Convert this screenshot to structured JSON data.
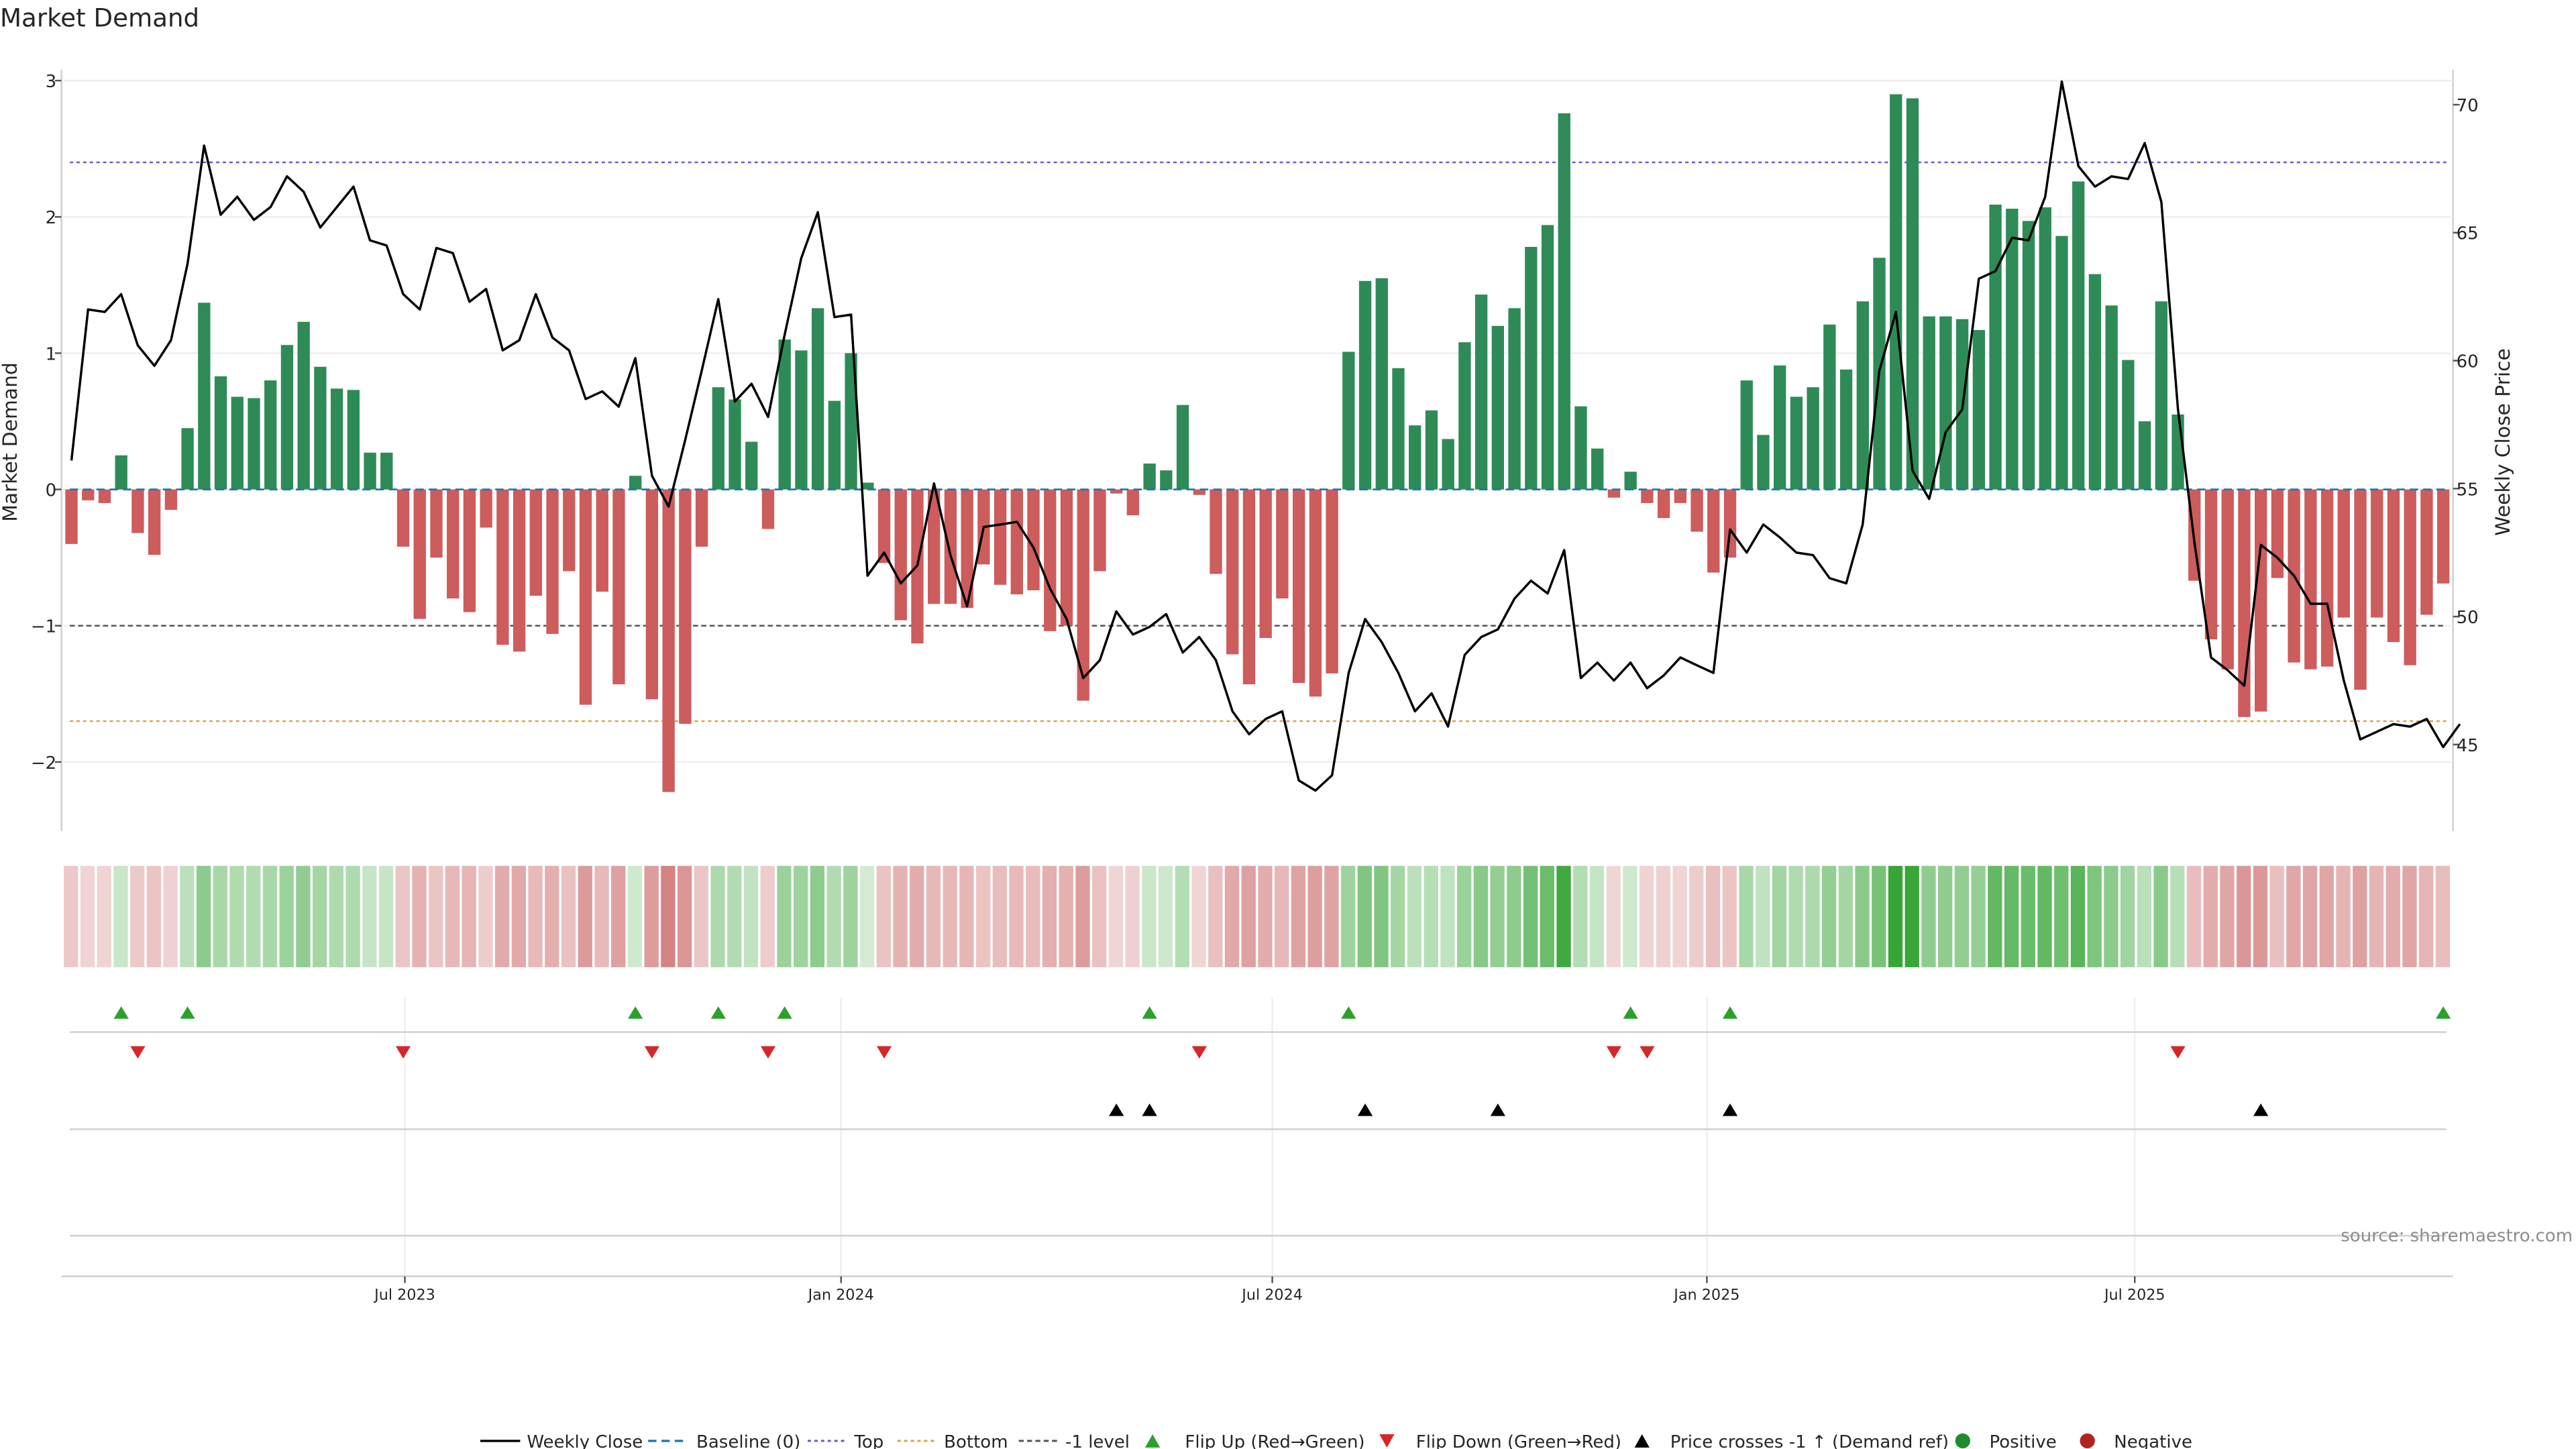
{
  "chart_data": {
    "type": "bar+line",
    "title": "Market Demand",
    "ylabel_left": "Market Demand",
    "ylabel_right": "Weekly Close Price",
    "ylim_left": [
      -2.5,
      3.1
    ],
    "ylim_right": [
      42,
      72
    ],
    "yticks_left": [
      -2,
      -1,
      0,
      1,
      2,
      3
    ],
    "ytick_labels_left": [
      "−2",
      "−1",
      "0",
      "1",
      "2",
      "3"
    ],
    "yticks_right": [
      45,
      50,
      55,
      60,
      65,
      70
    ],
    "ytick_labels_right": [
      "45",
      "50",
      "55",
      "60",
      "65",
      "70"
    ],
    "x_tick_weeks": [
      20.1,
      46.4,
      72.4,
      98.6,
      124.4
    ],
    "x_tick_labels": [
      "Jul 2023",
      "Jan 2024",
      "Jul 2024",
      "Jan 2025",
      "Jul 2025"
    ],
    "reference_lines": {
      "top": 2.4,
      "bottom": -1.7,
      "minus_one": -1.0,
      "baseline": 0
    },
    "demand": [
      -0.4,
      -0.08,
      -0.1,
      0.25,
      -0.32,
      -0.48,
      -0.15,
      0.45,
      1.37,
      0.83,
      0.68,
      0.67,
      0.8,
      1.06,
      1.23,
      0.9,
      0.74,
      0.73,
      0.27,
      0.27,
      -0.42,
      -0.95,
      -0.5,
      -0.8,
      -0.9,
      -0.28,
      -1.14,
      -1.19,
      -0.78,
      -1.06,
      -0.6,
      -1.58,
      -0.75,
      -1.43,
      0.1,
      -1.54,
      -2.22,
      -1.72,
      -0.42,
      0.75,
      0.66,
      0.35,
      -0.29,
      1.1,
      1.02,
      1.33,
      0.65,
      1.0,
      0.05,
      -0.54,
      -0.96,
      -1.13,
      -0.84,
      -0.84,
      -0.87,
      -0.55,
      -0.7,
      -0.77,
      -0.74,
      -1.04,
      -1.0,
      -1.55,
      -0.6,
      -0.03,
      -0.19,
      0.19,
      0.14,
      0.62,
      -0.04,
      -0.62,
      -1.21,
      -1.43,
      -1.09,
      -0.8,
      -1.42,
      -1.52,
      -1.35,
      1.01,
      1.53,
      1.55,
      0.89,
      0.47,
      0.58,
      0.37,
      1.08,
      1.43,
      1.2,
      1.33,
      1.78,
      1.94,
      2.76,
      0.61,
      0.3,
      -0.06,
      0.13,
      -0.1,
      -0.21,
      -0.1,
      -0.31,
      -0.61,
      -0.5,
      0.8,
      0.4,
      0.91,
      0.68,
      0.75,
      1.21,
      0.88,
      1.38,
      1.7,
      2.9,
      2.87,
      1.27,
      1.27,
      1.25,
      1.17,
      2.09,
      2.06,
      1.97,
      2.07,
      1.86,
      2.26,
      1.58,
      1.35,
      0.95,
      0.5,
      1.38,
      0.55,
      -0.67,
      -1.1,
      -1.32,
      -1.67,
      -1.63,
      -0.65,
      -1.27,
      -1.32,
      -1.3,
      -0.94,
      -1.47,
      -0.94,
      -1.12,
      -1.29,
      -0.92,
      -0.69
    ],
    "weekly_close": [
      56.1,
      62,
      61.9,
      62.6,
      60.6,
      59.8,
      60.8,
      63.8,
      68.4,
      65.7,
      66.4,
      65.5,
      66,
      67.2,
      66.6,
      65.2,
      66,
      66.8,
      64.7,
      64.5,
      62.6,
      62,
      64.4,
      64.2,
      62.3,
      62.8,
      60.4,
      60.8,
      62.6,
      60.9,
      60.4,
      58.5,
      58.8,
      58.2,
      60.1,
      55.5,
      54.3,
      56.9,
      59.6,
      62.4,
      58.4,
      59.1,
      57.8,
      61,
      64,
      65.8,
      61.7,
      61.8,
      51.6,
      52.5,
      51.3,
      52,
      55.2,
      52.4,
      50.4,
      53.5,
      53.6,
      53.7,
      52.7,
      51.1,
      49.9,
      47.6,
      48.3,
      50.2,
      49.3,
      49.6,
      50.1,
      48.6,
      49.2,
      48.3,
      46.3,
      45.4,
      46,
      46.3,
      43.6,
      43.2,
      43.8,
      47.8,
      49.9,
      49,
      47.8,
      46.3,
      47,
      45.7,
      48.5,
      49.2,
      49.5,
      50.7,
      51.4,
      50.9,
      52.6,
      47.6,
      48.2,
      47.5,
      48.2,
      47.2,
      47.7,
      48.4,
      48.1,
      47.8,
      53.4,
      52.5,
      53.6,
      53.1,
      52.5,
      52.4,
      51.5,
      51.3,
      53.6,
      59.6,
      61.9,
      55.7,
      54.6,
      57.2,
      58.1,
      63.2,
      63.5,
      64.8,
      64.7,
      66.4,
      70.9,
      67.6,
      66.8,
      67.2,
      67.1,
      68.5,
      66.2,
      58.1,
      52.9,
      48.4,
      47.9,
      47.3,
      52.8,
      52.3,
      51.6,
      50.5,
      50.5,
      47.5,
      45.2,
      45.5,
      45.8,
      45.7,
      46,
      44.9,
      45.8
    ],
    "flip_up_weeks": [
      3,
      7,
      34,
      39,
      43,
      65,
      77,
      94,
      100,
      143
    ],
    "flip_down_weeks": [
      4,
      20,
      35,
      42,
      49,
      68,
      93,
      95,
      127
    ],
    "price_cross_weeks": [
      63,
      65,
      78,
      86,
      100,
      132
    ],
    "source_text": "source: sharemaestro.com",
    "legend": [
      "Weekly Close",
      "Baseline (0)",
      "Top",
      "Bottom",
      "-1 level",
      "Flip Up (Red→Green)",
      "Flip Down (Green→Red)",
      "Price crosses -1 ↑ (Demand ref)",
      "Positive",
      "Negative"
    ],
    "colors": {
      "positive_bar": "#2e8b57",
      "negative_bar": "#cd5c5c",
      "line": "#000000",
      "baseline": "#1f77b4",
      "top": "#6a5acd",
      "bottom": "#d9a441",
      "minus_one": "#555555",
      "flip_up": "#2ca02c",
      "flip_down": "#d62728",
      "cross": "#000000",
      "pos_dot": "#1e8b2e",
      "neg_dot": "#b22222"
    }
  }
}
